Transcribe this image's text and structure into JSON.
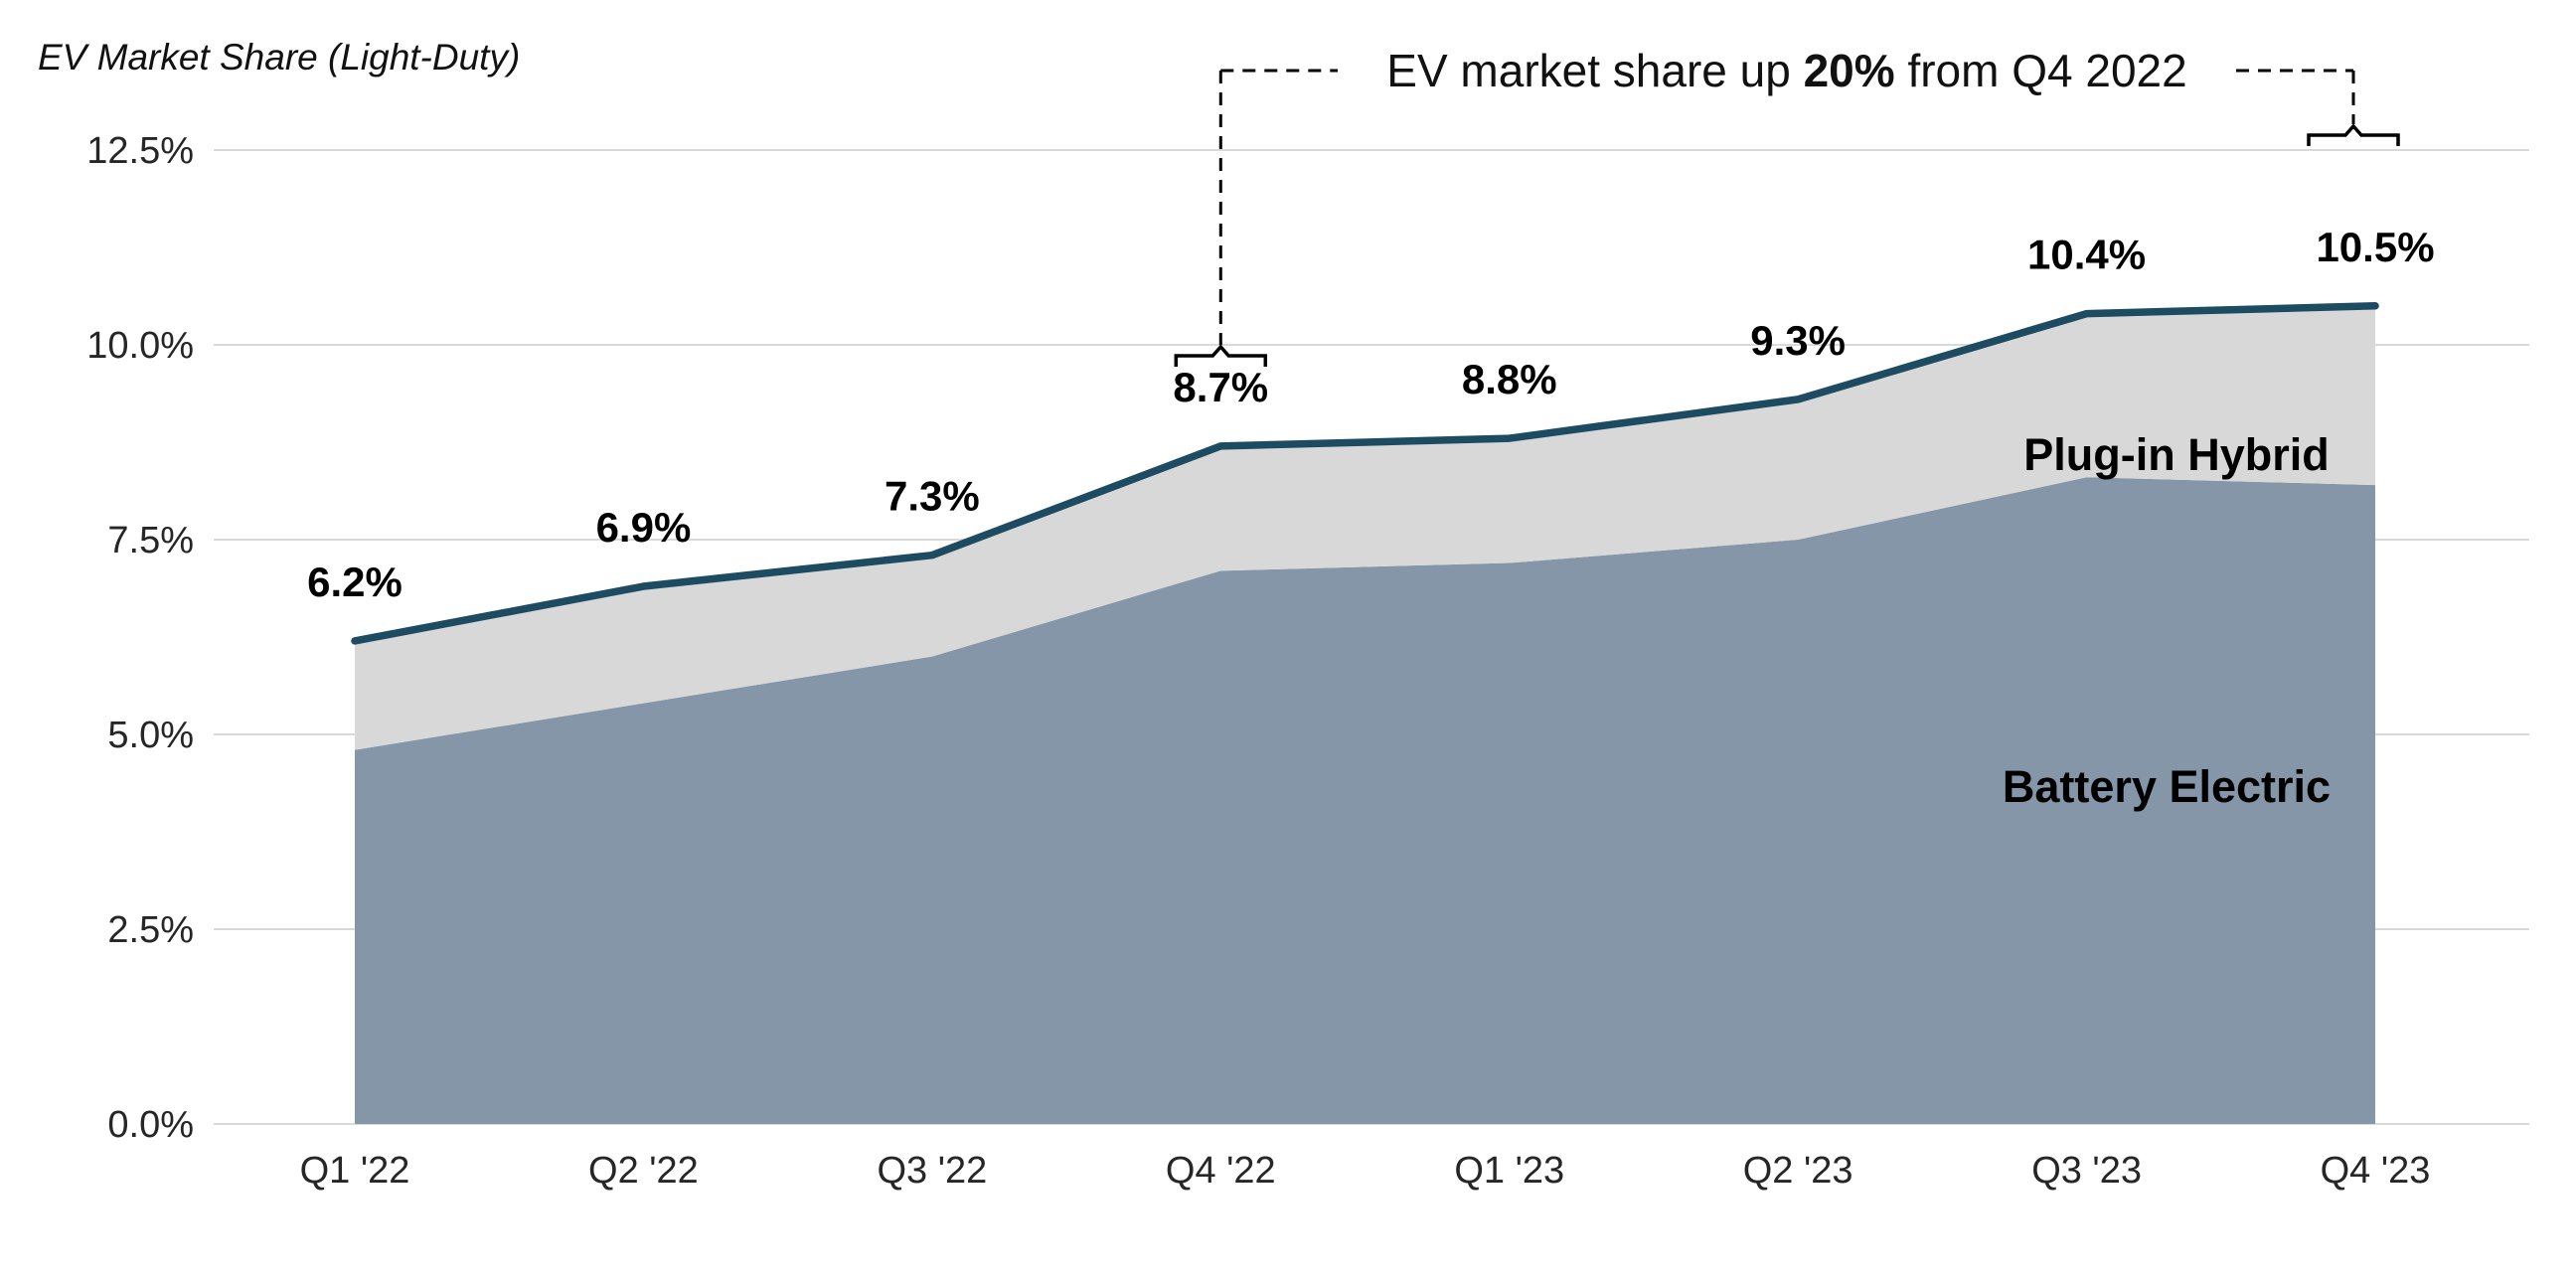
{
  "chart_data": {
    "type": "area",
    "stacked": true,
    "title": "EV Market Share (Light-Duty)",
    "categories": [
      "Q1 '22",
      "Q2 '22",
      "Q3 '22",
      "Q4 '22",
      "Q1 '23",
      "Q2 '23",
      "Q3 '23",
      "Q4 '23"
    ],
    "series": [
      {
        "name": "Battery Electric",
        "values": [
          4.8,
          5.4,
          6.0,
          7.1,
          7.2,
          7.5,
          8.3,
          8.2
        ],
        "color": "#8496A8"
      },
      {
        "name": "Plug-in Hybrid",
        "values": [
          1.4,
          1.5,
          1.3,
          1.6,
          1.6,
          1.8,
          2.1,
          2.3
        ],
        "color": "#D8D8D8"
      }
    ],
    "totals": [
      6.2,
      6.9,
      7.3,
      8.7,
      8.8,
      9.3,
      10.4,
      10.5
    ],
    "total_labels": [
      "6.2%",
      "6.9%",
      "7.3%",
      "8.7%",
      "8.8%",
      "9.3%",
      "10.4%",
      "10.5%"
    ],
    "xlabel": "",
    "ylabel": "",
    "ylim": [
      0,
      12.5
    ],
    "y_tick_values": [
      0,
      2.5,
      5,
      7.5,
      10,
      12.5
    ],
    "y_tick_labels": [
      "0.0%",
      "2.5%",
      "5.0%",
      "7.5%",
      "10.0%",
      "12.5%"
    ],
    "grid": true,
    "grid_color": "#D9D9D9",
    "line_color": "#1C4B62",
    "legend_position": "inside-area-labels",
    "annotation": {
      "prefix": "EV market share up ",
      "bold": "20%",
      "suffix": " from Q4 2022",
      "from_category": "Q4 '22",
      "to_category": "Q4 '23"
    }
  }
}
